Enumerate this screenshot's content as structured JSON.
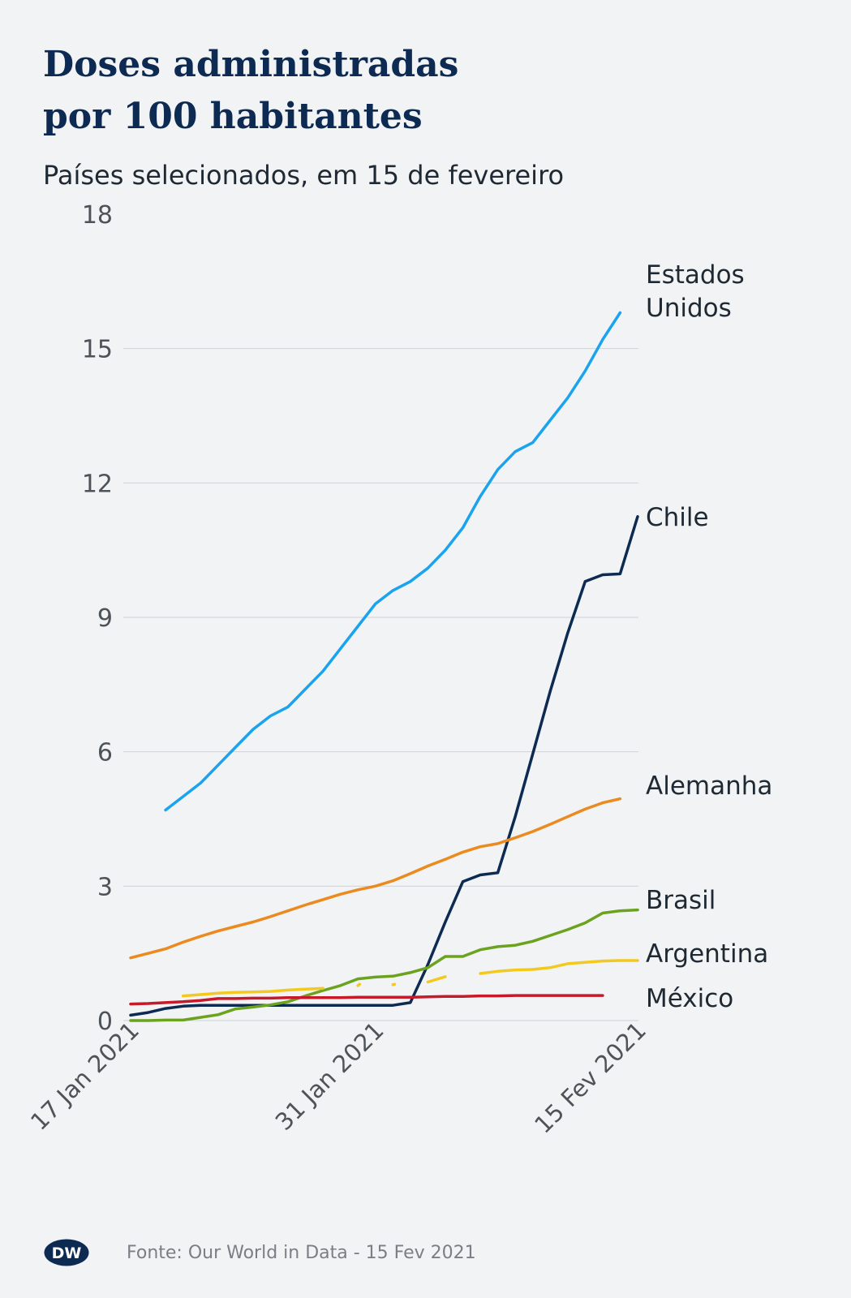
{
  "header": {
    "title_line1": "Doses administradas",
    "title_line2": "por 100 habitantes",
    "subtitle": "Países selecionados, em 15 de fevereiro"
  },
  "footer": {
    "logo_text": "DW",
    "source": "Fonte: Our World in Data  - 15 Fev 2021"
  },
  "colors": {
    "background": "#f1f3f5",
    "grid": "#cfd3d7",
    "axis_text": "#4d5358",
    "label_text": "#1f2933"
  },
  "chart_data": {
    "type": "line",
    "x_type": "date",
    "xlim": [
      "2021-01-17",
      "2021-02-15"
    ],
    "ylim": [
      0,
      18
    ],
    "yticks": [
      0,
      3,
      6,
      9,
      12,
      15,
      18
    ],
    "xticks": [
      {
        "date": "2021-01-17",
        "label": "17 Jan 2021"
      },
      {
        "date": "2021-01-31",
        "label": "31 Jan 2021"
      },
      {
        "date": "2021-02-15",
        "label": "15 Fev 2021"
      }
    ],
    "grid": true,
    "legend": "direct labels at line ends",
    "series": [
      {
        "name": "Estados Unidos",
        "label_lines": [
          "Estados",
          "Unidos"
        ],
        "color": "#1aa3ee",
        "points": [
          [
            "2021-01-19",
            4.7
          ],
          [
            "2021-01-20",
            5.0
          ],
          [
            "2021-01-21",
            5.3
          ],
          [
            "2021-01-22",
            5.7
          ],
          [
            "2021-01-23",
            6.1
          ],
          [
            "2021-01-24",
            6.5
          ],
          [
            "2021-01-25",
            6.8
          ],
          [
            "2021-01-26",
            7.0
          ],
          [
            "2021-01-27",
            7.4
          ],
          [
            "2021-01-28",
            7.8
          ],
          [
            "2021-01-29",
            8.3
          ],
          [
            "2021-01-30",
            8.8
          ],
          [
            "2021-01-31",
            9.3
          ],
          [
            "2021-02-01",
            9.6
          ],
          [
            "2021-02-02",
            9.8
          ],
          [
            "2021-02-03",
            10.1
          ],
          [
            "2021-02-04",
            10.5
          ],
          [
            "2021-02-05",
            11.0
          ],
          [
            "2021-02-06",
            11.7
          ],
          [
            "2021-02-07",
            12.3
          ],
          [
            "2021-02-08",
            12.7
          ],
          [
            "2021-02-09",
            12.9
          ],
          [
            "2021-02-10",
            13.4
          ],
          [
            "2021-02-11",
            13.9
          ],
          [
            "2021-02-12",
            14.5
          ],
          [
            "2021-02-13",
            15.2
          ],
          [
            "2021-02-14",
            15.8
          ]
        ]
      },
      {
        "name": "Chile",
        "label_lines": [
          "Chile"
        ],
        "color": "#0c2a52",
        "points": [
          [
            "2021-01-17",
            0.12
          ],
          [
            "2021-01-18",
            0.18
          ],
          [
            "2021-01-19",
            0.27
          ],
          [
            "2021-01-20",
            0.32
          ],
          [
            "2021-01-21",
            0.34
          ],
          [
            "2021-01-22",
            0.34
          ],
          [
            "2021-01-23",
            0.34
          ],
          [
            "2021-01-24",
            0.34
          ],
          [
            "2021-01-25",
            0.34
          ],
          [
            "2021-01-26",
            0.34
          ],
          [
            "2021-01-27",
            0.34
          ],
          [
            "2021-01-28",
            0.34
          ],
          [
            "2021-01-29",
            0.34
          ],
          [
            "2021-01-30",
            0.34
          ],
          [
            "2021-01-31",
            0.34
          ],
          [
            "2021-02-01",
            0.34
          ],
          [
            "2021-02-02",
            0.4
          ],
          [
            "2021-02-03",
            1.25
          ],
          [
            "2021-02-04",
            2.2
          ],
          [
            "2021-02-05",
            3.1
          ],
          [
            "2021-02-06",
            3.25
          ],
          [
            "2021-02-07",
            3.3
          ],
          [
            "2021-02-08",
            4.55
          ],
          [
            "2021-02-09",
            5.95
          ],
          [
            "2021-02-10",
            7.35
          ],
          [
            "2021-02-11",
            8.65
          ],
          [
            "2021-02-12",
            9.8
          ],
          [
            "2021-02-13",
            9.95
          ],
          [
            "2021-02-14",
            9.97
          ],
          [
            "2021-02-15",
            11.25
          ]
        ]
      },
      {
        "name": "Alemanha",
        "label_lines": [
          "Alemanha"
        ],
        "color": "#eb8a1e",
        "points": [
          [
            "2021-01-17",
            1.4
          ],
          [
            "2021-01-18",
            1.5
          ],
          [
            "2021-01-19",
            1.6
          ],
          [
            "2021-01-20",
            1.75
          ],
          [
            "2021-01-21",
            1.88
          ],
          [
            "2021-01-22",
            2.0
          ],
          [
            "2021-01-23",
            2.1
          ],
          [
            "2021-01-24",
            2.2
          ],
          [
            "2021-01-25",
            2.32
          ],
          [
            "2021-01-26",
            2.45
          ],
          [
            "2021-01-27",
            2.58
          ],
          [
            "2021-01-28",
            2.7
          ],
          [
            "2021-01-29",
            2.82
          ],
          [
            "2021-01-30",
            2.92
          ],
          [
            "2021-01-31",
            3.0
          ],
          [
            "2021-02-01",
            3.12
          ],
          [
            "2021-02-02",
            3.28
          ],
          [
            "2021-02-03",
            3.45
          ],
          [
            "2021-02-04",
            3.6
          ],
          [
            "2021-02-05",
            3.76
          ],
          [
            "2021-02-06",
            3.88
          ],
          [
            "2021-02-07",
            3.95
          ],
          [
            "2021-02-08",
            4.08
          ],
          [
            "2021-02-09",
            4.22
          ],
          [
            "2021-02-10",
            4.38
          ],
          [
            "2021-02-11",
            4.55
          ],
          [
            "2021-02-12",
            4.72
          ],
          [
            "2021-02-13",
            4.86
          ],
          [
            "2021-02-14",
            4.95
          ]
        ]
      },
      {
        "name": "Brasil",
        "label_lines": [
          "Brasil"
        ],
        "color": "#6ba21e",
        "points": [
          [
            "2021-01-17",
            0.0
          ],
          [
            "2021-01-18",
            0.0
          ],
          [
            "2021-01-19",
            0.01
          ],
          [
            "2021-01-20",
            0.01
          ],
          [
            "2021-01-21",
            0.07
          ],
          [
            "2021-01-22",
            0.13
          ],
          [
            "2021-01-23",
            0.26
          ],
          [
            "2021-01-24",
            0.3
          ],
          [
            "2021-01-25",
            0.35
          ],
          [
            "2021-01-26",
            0.42
          ],
          [
            "2021-01-27",
            0.55
          ],
          [
            "2021-01-28",
            0.67
          ],
          [
            "2021-01-29",
            0.78
          ],
          [
            "2021-01-30",
            0.93
          ],
          [
            "2021-01-31",
            0.97
          ],
          [
            "2021-02-01",
            0.99
          ],
          [
            "2021-02-02",
            1.07
          ],
          [
            "2021-02-03",
            1.18
          ],
          [
            "2021-02-04",
            1.43
          ],
          [
            "2021-02-05",
            1.43
          ],
          [
            "2021-02-06",
            1.58
          ],
          [
            "2021-02-07",
            1.65
          ],
          [
            "2021-02-08",
            1.68
          ],
          [
            "2021-02-09",
            1.77
          ],
          [
            "2021-02-10",
            1.9
          ],
          [
            "2021-02-11",
            2.03
          ],
          [
            "2021-02-12",
            2.18
          ],
          [
            "2021-02-13",
            2.4
          ],
          [
            "2021-02-14",
            2.45
          ],
          [
            "2021-02-15",
            2.47
          ]
        ]
      },
      {
        "name": "Argentina",
        "label_lines": [
          "Argentina"
        ],
        "color": "#f3c91e",
        "segments": [
          [
            [
              "2021-01-20",
              0.55
            ],
            [
              "2021-01-21",
              0.58
            ],
            [
              "2021-01-22",
              0.61
            ],
            [
              "2021-01-23",
              0.63
            ],
            [
              "2021-01-24",
              0.64
            ],
            [
              "2021-01-25",
              0.65
            ],
            [
              "2021-01-26",
              0.68
            ],
            [
              "2021-01-27",
              0.7
            ],
            [
              "2021-01-28",
              0.72
            ]
          ],
          [
            [
              "2021-01-30",
              0.78
            ],
            [
              "2021-01-30.1",
              0.81
            ]
          ],
          [
            [
              "2021-02-01",
              0.8
            ],
            [
              "2021-02-01.1",
              0.81
            ]
          ],
          [
            [
              "2021-02-03",
              0.86
            ],
            [
              "2021-02-04",
              0.98
            ]
          ],
          [
            [
              "2021-02-06",
              1.05
            ],
            [
              "2021-02-07",
              1.1
            ],
            [
              "2021-02-08",
              1.13
            ],
            [
              "2021-02-09",
              1.14
            ],
            [
              "2021-02-10",
              1.18
            ],
            [
              "2021-02-11",
              1.27
            ],
            [
              "2021-02-12",
              1.3
            ],
            [
              "2021-02-13",
              1.33
            ],
            [
              "2021-02-14",
              1.34
            ],
            [
              "2021-02-15",
              1.34
            ]
          ]
        ]
      },
      {
        "name": "México",
        "label_lines": [
          "México"
        ],
        "color": "#c61a2a",
        "points": [
          [
            "2021-01-17",
            0.37
          ],
          [
            "2021-01-18",
            0.38
          ],
          [
            "2021-01-19",
            0.4
          ],
          [
            "2021-01-20",
            0.42
          ],
          [
            "2021-01-21",
            0.45
          ],
          [
            "2021-01-22",
            0.49
          ],
          [
            "2021-01-23",
            0.49
          ],
          [
            "2021-01-24",
            0.5
          ],
          [
            "2021-01-25",
            0.5
          ],
          [
            "2021-01-26",
            0.51
          ],
          [
            "2021-01-27",
            0.51
          ],
          [
            "2021-01-28",
            0.51
          ],
          [
            "2021-01-29",
            0.51
          ],
          [
            "2021-01-30",
            0.52
          ],
          [
            "2021-01-31",
            0.52
          ],
          [
            "2021-02-01",
            0.52
          ],
          [
            "2021-02-02",
            0.52
          ],
          [
            "2021-02-03",
            0.53
          ],
          [
            "2021-02-04",
            0.54
          ],
          [
            "2021-02-05",
            0.54
          ],
          [
            "2021-02-06",
            0.55
          ],
          [
            "2021-02-07",
            0.55
          ],
          [
            "2021-02-08",
            0.56
          ],
          [
            "2021-02-09",
            0.56
          ],
          [
            "2021-02-10",
            0.56
          ],
          [
            "2021-02-11",
            0.56
          ],
          [
            "2021-02-12",
            0.56
          ],
          [
            "2021-02-13",
            0.56
          ]
        ]
      }
    ]
  }
}
